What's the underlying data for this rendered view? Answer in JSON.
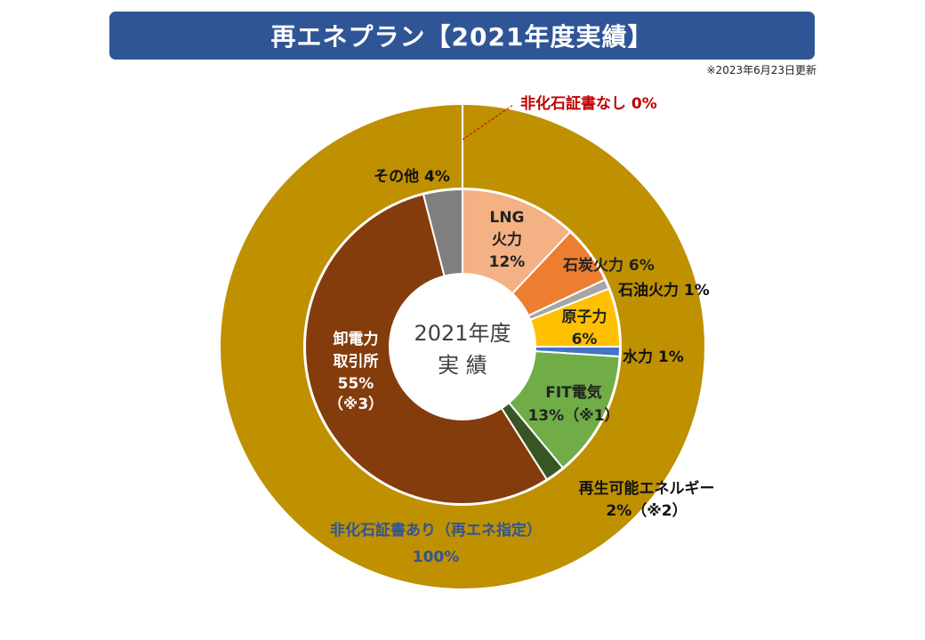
{
  "header": {
    "title": "再エネプラン【2021年度実績】",
    "update_note": "※2023年6月23日更新"
  },
  "center_label": {
    "line1": "2021年度",
    "line2": "実 績"
  },
  "chart_data": {
    "type": "pie",
    "style": "double-donut",
    "outer_ring": {
      "slices": [
        {
          "name": "非化石証書あり（再エネ指定）",
          "value": 100,
          "label": "100%",
          "color": "#bf9000"
        },
        {
          "name": "非化石証書なし",
          "value": 0,
          "label": "0%",
          "color": "#c00000"
        }
      ]
    },
    "inner_ring": {
      "slices": [
        {
          "name": "LNG火力",
          "value": 12,
          "label": "12%",
          "color": "#f4b183"
        },
        {
          "name": "石炭火力",
          "value": 6,
          "label": "6%",
          "color": "#ed7d31"
        },
        {
          "name": "石油火力",
          "value": 1,
          "label": "1%",
          "color": "#a5a5a5"
        },
        {
          "name": "原子力",
          "value": 6,
          "label": "6%",
          "color": "#ffc000"
        },
        {
          "name": "水力",
          "value": 1,
          "label": "1%",
          "color": "#4472c4"
        },
        {
          "name": "FIT電気",
          "value": 13,
          "label": "13%（※1）",
          "color": "#70ad47"
        },
        {
          "name": "再生可能エネルギー",
          "value": 2,
          "label": "2%（※2）",
          "color": "#375623"
        },
        {
          "name": "卸電力取引所",
          "value": 55,
          "label": "55%",
          "note": "（※3）",
          "color": "#843c0c"
        },
        {
          "name": "その他",
          "value": 4,
          "label": "4%",
          "color": "#7f7f7f"
        }
      ]
    },
    "label_texts": {
      "outer_0_name": "非化石証書あり（再エネ指定）",
      "outer_0_value": "100%",
      "outer_1": "非化石証書なし 0%",
      "lng_a": "LNG",
      "lng_b": "火力",
      "lng_c": "12%",
      "coal": "石炭火力 6%",
      "oil": "石油火力 1%",
      "nuclear_a": "原子力",
      "nuclear_b": "6%",
      "hydro": "水力 1%",
      "fit_a": "FIT電気",
      "fit_b": "13%（※1）",
      "renew_a": "再生可能エネルギー",
      "renew_b": "2%（※2）",
      "market_a": "卸電力",
      "market_b": "取引所",
      "market_c": "55%",
      "market_d": "（※3）",
      "other": "その他 4%"
    }
  }
}
